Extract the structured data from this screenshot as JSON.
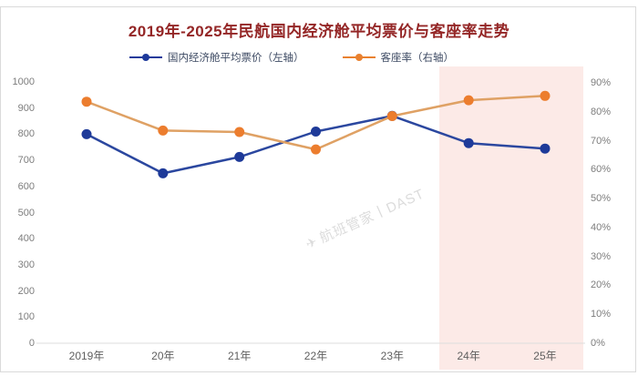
{
  "title": "2019年-2025年民航国内经济舱平均票价与客座率走势",
  "title_color": "#942626",
  "legend": [
    {
      "label": "国内经济舱平均票价（左轴）",
      "color": "#1e3a9b"
    },
    {
      "label": "客座率（右轴）",
      "color": "#e9812f"
    }
  ],
  "watermark": {
    "icon": "✈",
    "text": "航班管家丨DAST"
  },
  "chart_data": {
    "type": "line",
    "title": "2019年-2025年民航国内经济舱平均票价与客座率走势",
    "categories": [
      "2019年",
      "20年",
      "21年",
      "22年",
      "23年",
      "24年",
      "25年"
    ],
    "series": [
      {
        "name": "国内经济舱平均票价（左轴）",
        "axis": "left",
        "values": [
          800,
          650,
          713,
          810,
          870,
          766,
          745
        ],
        "line_color": "#2b479f",
        "point_color": "#1e3a99"
      },
      {
        "name": "客座率（右轴）",
        "axis": "right",
        "values": [
          83.5,
          73.5,
          73,
          67,
          78.5,
          84,
          85.5
        ],
        "line_color": "#dfa164",
        "point_color": "#ec7d2e"
      }
    ],
    "left_axis": {
      "min": 0,
      "max": 1000,
      "step": 100,
      "ticks": [
        "0",
        "100",
        "200",
        "300",
        "400",
        "500",
        "600",
        "700",
        "800",
        "900",
        "1000"
      ]
    },
    "right_axis": {
      "min": 0,
      "max": 90,
      "step": 10,
      "ticks": [
        "0%",
        "10%",
        "20%",
        "30%",
        "40%",
        "50%",
        "60%",
        "70%",
        "80%",
        "90%"
      ]
    },
    "highlight": {
      "categories": [
        "24年",
        "25年"
      ],
      "color": "#fceae7"
    },
    "legend_position": "top",
    "grid": false
  }
}
